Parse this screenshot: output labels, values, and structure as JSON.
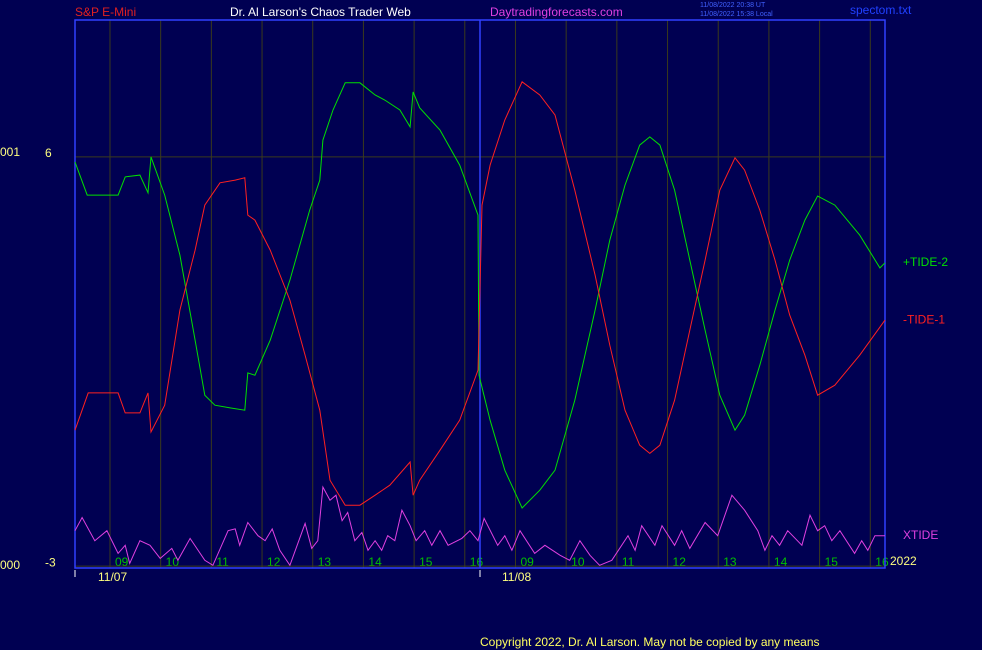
{
  "chart_data": {
    "type": "line",
    "instrument": "S&P E-Mini",
    "title": "Dr. Al Larson's Chaos Trader Web",
    "site": "Daytradingforecasts.com",
    "timestamps": [
      "11/08/2022 20:38 UT",
      "11/08/2022 15:38 Local"
    ],
    "file": "spectom.txt",
    "left_labels": [
      "001",
      "000"
    ],
    "dates": [
      "11/07",
      "11/08"
    ],
    "year": "2022",
    "footer": "Copyright 2022, Dr. Al Larson. May not be copied by any means",
    "grid": true,
    "xlim": [
      -0.69,
      15.29
    ],
    "xticks": [
      {
        "value": 0,
        "label": "09"
      },
      {
        "value": 1,
        "label": "10"
      },
      {
        "value": 2,
        "label": "11"
      },
      {
        "value": 3,
        "label": "12"
      },
      {
        "value": 4,
        "label": "13"
      },
      {
        "value": 5,
        "label": "14"
      },
      {
        "value": 6,
        "label": "15"
      },
      {
        "value": 7,
        "label": "16"
      },
      {
        "value": 8,
        "label": "09"
      },
      {
        "value": 9,
        "label": "10"
      },
      {
        "value": 10,
        "label": "11"
      },
      {
        "value": 11,
        "label": "12"
      },
      {
        "value": 12,
        "label": "13"
      },
      {
        "value": 13,
        "label": "14"
      },
      {
        "value": 14,
        "label": "15"
      },
      {
        "value": 15,
        "label": "16"
      }
    ],
    "ylim": [
      -3.04,
      9.01
    ],
    "yticks": [
      6,
      -3
    ],
    "series": [
      {
        "name": "+TIDE-2",
        "color": "#00e000",
        "x": [
          -0.69,
          -0.45,
          0.16,
          0.3,
          0.59,
          0.75,
          0.81,
          1.08,
          1.38,
          1.68,
          1.87,
          2.07,
          2.37,
          2.66,
          2.72,
          2.86,
          3.16,
          3.55,
          3.94,
          4.14,
          4.2,
          4.4,
          4.64,
          4.93,
          5.23,
          5.42,
          5.72,
          5.92,
          5.98,
          6.11,
          6.51,
          6.9,
          7.26,
          7.28,
          7.5,
          7.79,
          8.13,
          8.48,
          8.78,
          9.17,
          9.57,
          9.86,
          10.16,
          10.45,
          10.65,
          10.85,
          11.14,
          11.44,
          11.74,
          12.03,
          12.33,
          12.52,
          12.82,
          13.12,
          13.41,
          13.71,
          13.96,
          14.3,
          14.79,
          15.19,
          15.29
        ],
        "values": [
          5.89,
          5.16,
          5.16,
          5.56,
          5.6,
          5.21,
          6.0,
          5.16,
          3.84,
          1.97,
          0.76,
          0.54,
          0.48,
          0.43,
          1.25,
          1.2,
          1.97,
          3.29,
          4.83,
          5.49,
          6.37,
          7.03,
          7.63,
          7.63,
          7.36,
          7.25,
          7.03,
          6.66,
          7.43,
          7.08,
          6.59,
          5.82,
          4.72,
          1.2,
          0.21,
          -0.89,
          -1.72,
          -1.33,
          -0.89,
          0.65,
          2.63,
          4.17,
          5.38,
          6.26,
          6.44,
          6.26,
          5.27,
          3.73,
          2.19,
          0.76,
          -0.01,
          0.32,
          1.42,
          2.63,
          3.73,
          4.61,
          5.14,
          4.94,
          4.28,
          3.56,
          3.67
        ]
      },
      {
        "name": "-TIDE-1",
        "color": "#ff2020",
        "x": [
          -0.69,
          -0.43,
          0.16,
          0.3,
          0.59,
          0.75,
          0.81,
          1.08,
          1.38,
          1.68,
          1.87,
          2.17,
          2.47,
          2.66,
          2.72,
          2.86,
          3.16,
          3.55,
          3.85,
          4.14,
          4.34,
          4.64,
          4.93,
          5.23,
          5.52,
          5.92,
          5.98,
          6.11,
          6.51,
          6.9,
          7.26,
          7.34,
          7.5,
          7.79,
          8.13,
          8.48,
          8.78,
          9.17,
          9.57,
          9.86,
          10.16,
          10.45,
          10.65,
          10.85,
          11.14,
          11.44,
          11.74,
          12.03,
          12.33,
          12.52,
          12.82,
          13.12,
          13.41,
          13.71,
          13.96,
          14.3,
          14.79,
          15.29
        ],
        "values": [
          -0.01,
          0.81,
          0.81,
          0.37,
          0.37,
          0.81,
          -0.05,
          0.54,
          2.63,
          3.95,
          4.94,
          5.43,
          5.49,
          5.54,
          4.72,
          4.61,
          3.95,
          2.85,
          1.64,
          0.43,
          -1.11,
          -1.66,
          -1.66,
          -1.44,
          -1.22,
          -0.71,
          -1.44,
          -1.11,
          -0.45,
          0.21,
          1.31,
          4.94,
          5.82,
          6.81,
          7.65,
          7.36,
          6.92,
          5.27,
          3.4,
          1.86,
          0.43,
          -0.34,
          -0.52,
          -0.34,
          0.65,
          2.19,
          3.73,
          5.27,
          5.98,
          5.71,
          4.83,
          3.73,
          2.52,
          1.64,
          0.76,
          0.98,
          1.64,
          2.41
        ]
      },
      {
        "name": "XTIDE",
        "color": "#e040e0",
        "x": [
          -0.69,
          -0.55,
          -0.3,
          -0.06,
          0.16,
          0.3,
          0.39,
          0.59,
          0.79,
          0.99,
          1.22,
          1.34,
          1.58,
          1.87,
          2.03,
          2.33,
          2.47,
          2.56,
          2.72,
          2.92,
          3.06,
          3.2,
          3.35,
          3.55,
          3.85,
          3.98,
          4.1,
          4.2,
          4.34,
          4.46,
          4.58,
          4.69,
          4.83,
          4.97,
          5.09,
          5.23,
          5.36,
          5.48,
          5.62,
          5.76,
          5.92,
          6.04,
          6.21,
          6.35,
          6.51,
          6.67,
          6.94,
          7.1,
          7.26,
          7.38,
          7.65,
          7.79,
          7.93,
          8.09,
          8.38,
          8.58,
          8.88,
          9.07,
          9.27,
          9.47,
          9.66,
          9.9,
          10.22,
          10.36,
          10.49,
          10.75,
          10.89,
          11.14,
          11.28,
          11.44,
          11.74,
          11.99,
          12.27,
          12.52,
          12.78,
          12.92,
          13.06,
          13.21,
          13.37,
          13.65,
          13.81,
          13.96,
          14.1,
          14.24,
          14.4,
          14.69,
          14.83,
          14.95,
          15.09,
          15.29
        ],
        "values": [
          -2.22,
          -1.93,
          -2.44,
          -2.22,
          -2.72,
          -2.54,
          -2.94,
          -2.44,
          -2.54,
          -2.83,
          -2.61,
          -2.87,
          -2.39,
          -2.87,
          -2.98,
          -2.22,
          -2.18,
          -2.54,
          -2.04,
          -2.33,
          -2.44,
          -2.18,
          -2.65,
          -2.98,
          -2.06,
          -2.61,
          -2.44,
          -1.26,
          -1.55,
          -1.44,
          -2.0,
          -1.82,
          -2.44,
          -2.26,
          -2.65,
          -2.44,
          -2.65,
          -2.33,
          -2.44,
          -1.77,
          -2.11,
          -2.44,
          -2.22,
          -2.54,
          -2.22,
          -2.54,
          -2.39,
          -2.22,
          -2.44,
          -1.95,
          -2.54,
          -2.33,
          -2.65,
          -2.22,
          -2.72,
          -2.54,
          -2.76,
          -2.87,
          -2.44,
          -2.76,
          -2.98,
          -2.87,
          -2.33,
          -2.65,
          -2.11,
          -2.54,
          -2.11,
          -2.54,
          -2.22,
          -2.61,
          -2.04,
          -2.33,
          -1.44,
          -1.77,
          -2.22,
          -2.65,
          -2.33,
          -2.54,
          -2.22,
          -2.54,
          -1.88,
          -2.22,
          -2.11,
          -2.44,
          -2.22,
          -2.72,
          -2.44,
          -2.65,
          -2.33,
          -2.33
        ]
      }
    ]
  }
}
